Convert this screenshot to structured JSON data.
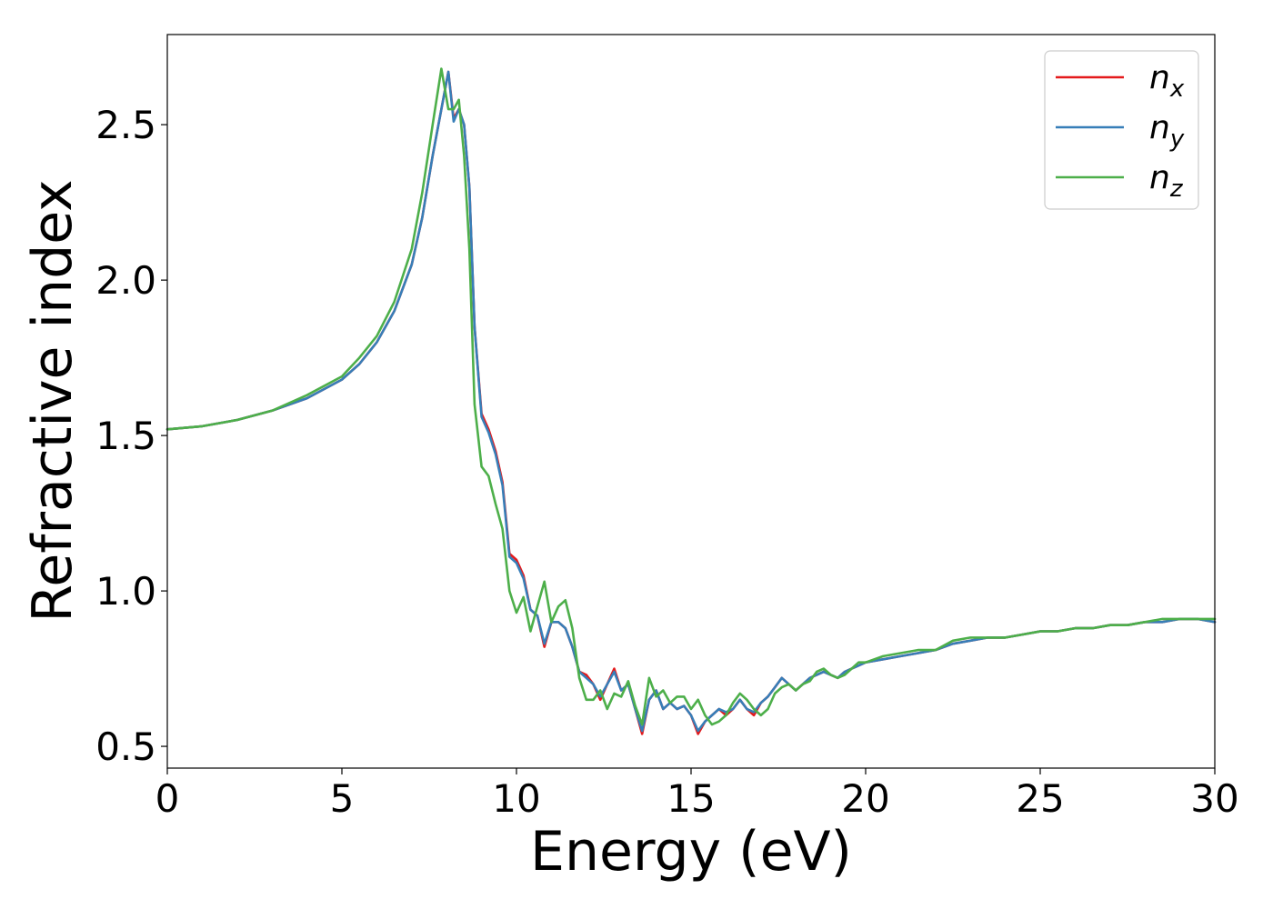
{
  "chart_data": {
    "type": "line",
    "xlabel": "Energy (eV)",
    "ylabel": "Refractive index",
    "xlim": [
      0,
      30
    ],
    "ylim": [
      0.43,
      2.79
    ],
    "xticks": [
      0,
      5,
      10,
      15,
      20,
      25,
      30
    ],
    "xtick_labels": [
      "0",
      "5",
      "10",
      "15",
      "20",
      "25",
      "30"
    ],
    "yticks": [
      0.5,
      1.0,
      1.5,
      2.0,
      2.5
    ],
    "ytick_labels": [
      "0.5",
      "1.0",
      "1.5",
      "2.0",
      "2.5"
    ],
    "grid": false,
    "legend_position": "top-right",
    "series": [
      {
        "name": "n_x",
        "label_base": "n",
        "label_sub": "x",
        "color": "#e41a1c",
        "x": [
          0,
          1,
          2,
          3,
          4,
          5,
          5.5,
          6,
          6.5,
          7,
          7.3,
          7.6,
          7.85,
          8.05,
          8.2,
          8.35,
          8.5,
          8.65,
          8.8,
          9.0,
          9.2,
          9.4,
          9.6,
          9.8,
          10.0,
          10.2,
          10.4,
          10.6,
          10.8,
          11.0,
          11.2,
          11.4,
          11.6,
          11.8,
          12.0,
          12.2,
          12.4,
          12.6,
          12.8,
          13.0,
          13.2,
          13.4,
          13.6,
          13.8,
          14.0,
          14.2,
          14.4,
          14.6,
          14.8,
          15.0,
          15.2,
          15.4,
          15.6,
          15.8,
          16.0,
          16.2,
          16.4,
          16.6,
          16.8,
          17.0,
          17.2,
          17.4,
          17.6,
          17.8,
          18.0,
          18.2,
          18.4,
          18.6,
          18.8,
          19.0,
          19.2,
          19.4,
          19.6,
          19.8,
          20.0,
          20.5,
          21.0,
          21.5,
          22.0,
          22.5,
          23.0,
          23.5,
          24.0,
          24.5,
          25.0,
          25.5,
          26.0,
          26.5,
          27.0,
          27.5,
          28.0,
          28.5,
          29.0,
          29.5,
          30.0
        ],
        "values": [
          1.52,
          1.53,
          1.55,
          1.58,
          1.62,
          1.68,
          1.73,
          1.8,
          1.9,
          2.05,
          2.2,
          2.4,
          2.55,
          2.67,
          2.52,
          2.55,
          2.5,
          2.3,
          1.85,
          1.57,
          1.52,
          1.45,
          1.35,
          1.12,
          1.1,
          1.05,
          0.94,
          0.92,
          0.82,
          0.9,
          0.9,
          0.88,
          0.82,
          0.74,
          0.73,
          0.7,
          0.65,
          0.7,
          0.75,
          0.68,
          0.7,
          0.62,
          0.54,
          0.65,
          0.68,
          0.62,
          0.64,
          0.62,
          0.63,
          0.6,
          0.54,
          0.58,
          0.6,
          0.62,
          0.6,
          0.62,
          0.65,
          0.62,
          0.6,
          0.64,
          0.66,
          0.69,
          0.72,
          0.7,
          0.68,
          0.7,
          0.72,
          0.73,
          0.74,
          0.73,
          0.72,
          0.74,
          0.75,
          0.76,
          0.77,
          0.78,
          0.79,
          0.8,
          0.81,
          0.83,
          0.84,
          0.85,
          0.85,
          0.86,
          0.87,
          0.87,
          0.88,
          0.88,
          0.89,
          0.89,
          0.9,
          0.9,
          0.91,
          0.91,
          0.9
        ]
      },
      {
        "name": "n_y",
        "label_base": "n",
        "label_sub": "y",
        "color": "#377eb8",
        "x": [
          0,
          1,
          2,
          3,
          4,
          5,
          5.5,
          6,
          6.5,
          7,
          7.3,
          7.6,
          7.85,
          8.05,
          8.2,
          8.35,
          8.5,
          8.65,
          8.8,
          9.0,
          9.2,
          9.4,
          9.6,
          9.8,
          10.0,
          10.2,
          10.4,
          10.6,
          10.8,
          11.0,
          11.2,
          11.4,
          11.6,
          11.8,
          12.0,
          12.2,
          12.4,
          12.6,
          12.8,
          13.0,
          13.2,
          13.4,
          13.6,
          13.8,
          14.0,
          14.2,
          14.4,
          14.6,
          14.8,
          15.0,
          15.2,
          15.4,
          15.6,
          15.8,
          16.0,
          16.2,
          16.4,
          16.6,
          16.8,
          17.0,
          17.2,
          17.4,
          17.6,
          17.8,
          18.0,
          18.2,
          18.4,
          18.6,
          18.8,
          19.0,
          19.2,
          19.4,
          19.6,
          19.8,
          20.0,
          20.5,
          21.0,
          21.5,
          22.0,
          22.5,
          23.0,
          23.5,
          24.0,
          24.5,
          25.0,
          25.5,
          26.0,
          26.5,
          27.0,
          27.5,
          28.0,
          28.5,
          29.0,
          29.5,
          30.0
        ],
        "values": [
          1.52,
          1.53,
          1.55,
          1.58,
          1.62,
          1.68,
          1.73,
          1.8,
          1.9,
          2.05,
          2.2,
          2.4,
          2.55,
          2.67,
          2.51,
          2.55,
          2.5,
          2.3,
          1.85,
          1.56,
          1.51,
          1.44,
          1.34,
          1.11,
          1.09,
          1.04,
          0.94,
          0.92,
          0.83,
          0.9,
          0.9,
          0.88,
          0.82,
          0.74,
          0.72,
          0.7,
          0.66,
          0.7,
          0.74,
          0.68,
          0.7,
          0.62,
          0.55,
          0.65,
          0.68,
          0.62,
          0.64,
          0.62,
          0.63,
          0.6,
          0.55,
          0.58,
          0.6,
          0.62,
          0.61,
          0.62,
          0.65,
          0.62,
          0.61,
          0.64,
          0.66,
          0.69,
          0.72,
          0.7,
          0.68,
          0.7,
          0.72,
          0.73,
          0.74,
          0.73,
          0.72,
          0.74,
          0.75,
          0.76,
          0.77,
          0.78,
          0.79,
          0.8,
          0.81,
          0.83,
          0.84,
          0.85,
          0.85,
          0.86,
          0.87,
          0.87,
          0.88,
          0.88,
          0.89,
          0.89,
          0.9,
          0.9,
          0.91,
          0.91,
          0.9
        ]
      },
      {
        "name": "n_z",
        "label_base": "n",
        "label_sub": "z",
        "color": "#4daf4a",
        "x": [
          0,
          1,
          2,
          3,
          4,
          5,
          5.5,
          6,
          6.5,
          7,
          7.3,
          7.6,
          7.85,
          8.05,
          8.2,
          8.35,
          8.5,
          8.65,
          8.8,
          9.0,
          9.2,
          9.4,
          9.6,
          9.8,
          10.0,
          10.2,
          10.4,
          10.6,
          10.8,
          11.0,
          11.2,
          11.4,
          11.6,
          11.8,
          12.0,
          12.2,
          12.4,
          12.6,
          12.8,
          13.0,
          13.2,
          13.4,
          13.6,
          13.8,
          14.0,
          14.2,
          14.4,
          14.6,
          14.8,
          15.0,
          15.2,
          15.4,
          15.6,
          15.8,
          16.0,
          16.2,
          16.4,
          16.6,
          16.8,
          17.0,
          17.2,
          17.4,
          17.6,
          17.8,
          18.0,
          18.2,
          18.4,
          18.6,
          18.8,
          19.0,
          19.2,
          19.4,
          19.6,
          19.8,
          20.0,
          20.5,
          21.0,
          21.5,
          22.0,
          22.5,
          23.0,
          23.5,
          24.0,
          24.5,
          25.0,
          25.5,
          26.0,
          26.5,
          27.0,
          27.5,
          28.0,
          28.5,
          29.0,
          29.5,
          30.0
        ],
        "values": [
          1.52,
          1.53,
          1.55,
          1.58,
          1.63,
          1.69,
          1.75,
          1.82,
          1.93,
          2.1,
          2.28,
          2.5,
          2.68,
          2.55,
          2.55,
          2.58,
          2.4,
          2.1,
          1.6,
          1.4,
          1.37,
          1.28,
          1.2,
          1.0,
          0.93,
          0.98,
          0.87,
          0.95,
          1.03,
          0.9,
          0.95,
          0.97,
          0.88,
          0.72,
          0.65,
          0.65,
          0.68,
          0.62,
          0.67,
          0.66,
          0.71,
          0.63,
          0.57,
          0.72,
          0.66,
          0.68,
          0.64,
          0.66,
          0.66,
          0.62,
          0.65,
          0.6,
          0.57,
          0.58,
          0.6,
          0.64,
          0.67,
          0.65,
          0.62,
          0.6,
          0.62,
          0.67,
          0.69,
          0.7,
          0.68,
          0.7,
          0.71,
          0.74,
          0.75,
          0.73,
          0.72,
          0.73,
          0.75,
          0.77,
          0.77,
          0.79,
          0.8,
          0.81,
          0.81,
          0.84,
          0.85,
          0.85,
          0.85,
          0.86,
          0.87,
          0.87,
          0.88,
          0.88,
          0.89,
          0.89,
          0.9,
          0.91,
          0.91,
          0.91,
          0.91
        ]
      }
    ]
  }
}
